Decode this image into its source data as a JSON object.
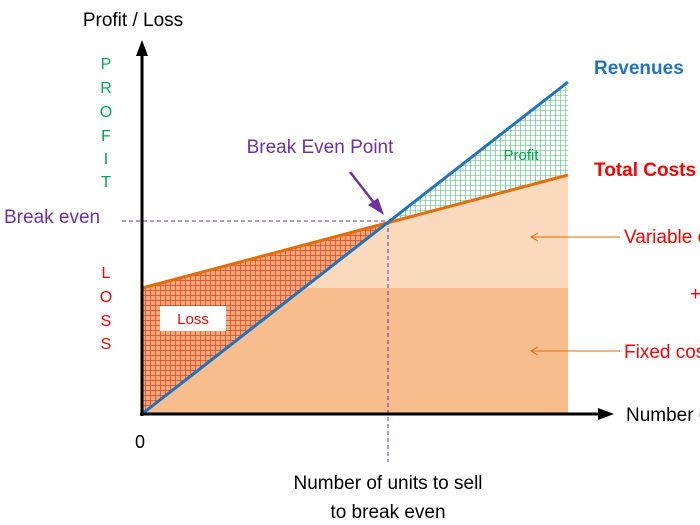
{
  "y_axis_label": "Profit / Loss",
  "x_axis_label": "Number of units",
  "origin_label": "0",
  "profit_side_letters": [
    "P",
    "R",
    "O",
    "F",
    "I",
    "T"
  ],
  "loss_side_letters": [
    "L",
    "O",
    "S",
    "S"
  ],
  "break_even_label": "Break even",
  "break_even_point_label": "Break Even Point",
  "profit_region_label": "Profit",
  "loss_region_label": "Loss",
  "revenues_label": "Revenues",
  "total_costs_label": "Total Costs",
  "variable_costs_label": "Variable costs",
  "plus_sign": "+",
  "fixed_costs_label": "Fixed costs",
  "units_to_break_even_line1": "Number of units to sell",
  "units_to_break_even_line2": "to break even",
  "colors": {
    "revenue_line": "#1f73c1",
    "cost_line": "#e46c0a",
    "fixed_costs_fill": "#f7bd8c",
    "variable_costs_fill": "#fbd9bc",
    "loss_fill": "#f4a77a",
    "loss_hatch": "#d94520",
    "profit_hatch": "#4cbf75",
    "profit_text": "#00a651",
    "loss_text": "#ff0000",
    "break_even_purple": "#7030a0",
    "axis": "#000000"
  }
}
